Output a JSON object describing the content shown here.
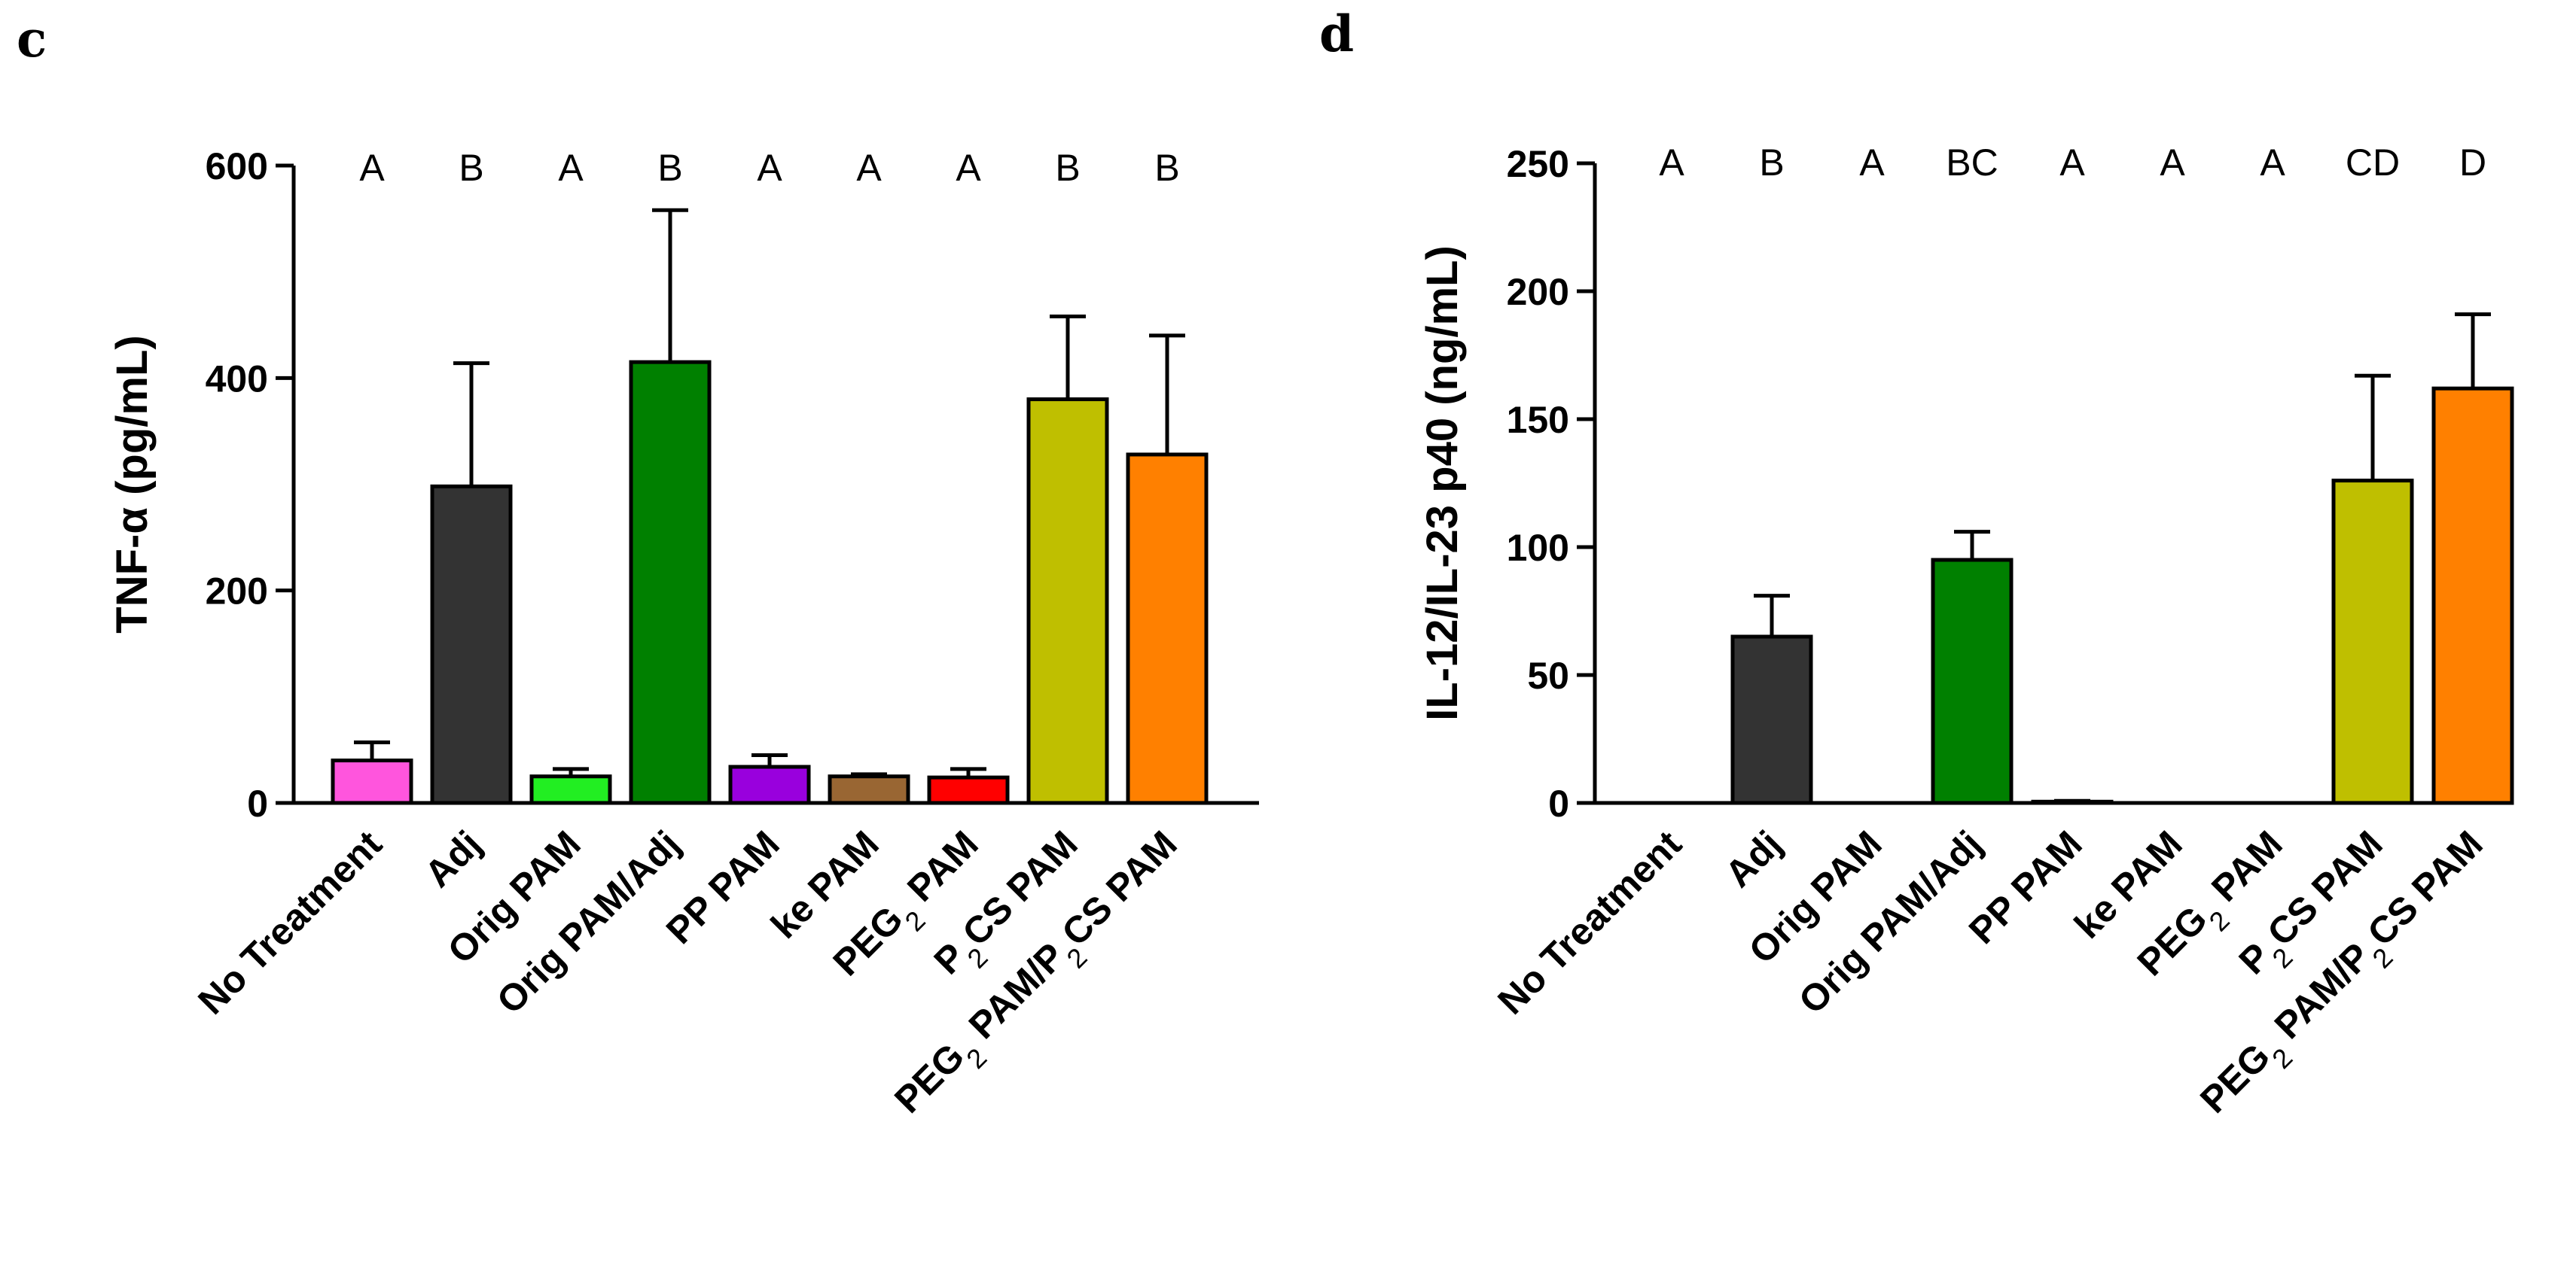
{
  "chart_data": [
    {
      "panel": "c",
      "type": "bar",
      "ylabel": "TNF-α (pg/mL)",
      "ylim": [
        0,
        600
      ],
      "yticks": [
        0,
        200,
        400,
        600
      ],
      "categories": [
        "No Treatment",
        "Adj",
        "Orig PAM",
        "Orig PAM/Adj",
        "PP PAM",
        "ke PAM",
        "PEG2 PAM",
        "P2CS PAM",
        "PEG2 PAM/P2CS PAM"
      ],
      "values": [
        40,
        298,
        25,
        415,
        34,
        25,
        24,
        380,
        328
      ],
      "error_upper": [
        57,
        414,
        32,
        558,
        45,
        27,
        32,
        458,
        440
      ],
      "significance": [
        "A",
        "B",
        "A",
        "B",
        "A",
        "A",
        "A",
        "B",
        "B"
      ],
      "colors": [
        "#ff55dd",
        "#333333",
        "#22ee22",
        "#008000",
        "#9900dd",
        "#996633",
        "#ff0000",
        "#bfbf00",
        "#ff8000"
      ]
    },
    {
      "panel": "d",
      "type": "bar",
      "ylabel": "IL-12/IL-23 p40 (ng/mL)",
      "ylim": [
        0,
        250
      ],
      "yticks": [
        0,
        50,
        100,
        150,
        200,
        250
      ],
      "categories": [
        "No Treatment",
        "Adj",
        "Orig PAM",
        "Orig PAM/Adj",
        "PP PAM",
        "ke PAM",
        "PEG2 PAM",
        "P2CS PAM",
        "PEG2 PAM/P2CS PAM"
      ],
      "values": [
        0,
        65,
        0,
        95,
        0.5,
        0,
        0,
        126,
        162
      ],
      "error_upper": [
        0,
        81,
        0,
        106,
        0.8,
        0,
        0,
        167,
        191
      ],
      "significance": [
        "A",
        "B",
        "A",
        "BC",
        "A",
        "A",
        "A",
        "CD",
        "D"
      ],
      "colors": [
        "#ff55dd",
        "#333333",
        "#22ee22",
        "#008000",
        "#9900dd",
        "#996633",
        "#ff0000",
        "#bfbf00",
        "#ff8000"
      ]
    }
  ]
}
